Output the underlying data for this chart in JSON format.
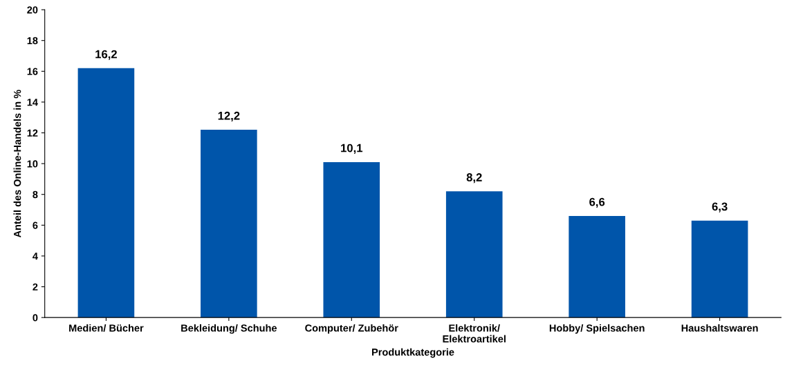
{
  "chart_data": {
    "type": "bar",
    "categories": [
      "Medien/ Bücher",
      "Bekleidung/ Schuhe",
      "Computer/ Zubehör",
      "Elektronik/\nElektroartikel",
      "Hobby/ Spielsachen",
      "Haushaltswaren"
    ],
    "values": [
      16.2,
      12.2,
      10.1,
      8.2,
      6.6,
      6.3
    ],
    "value_labels": [
      "16,2",
      "12,2",
      "10,1",
      "8,2",
      "6,6",
      "6,3"
    ],
    "color": "#0055aa",
    "xlabel": "Produktkategorie",
    "ylabel": "Anteil des Online-Handels in %",
    "ylim": [
      0,
      20
    ],
    "yticks": [
      0,
      2,
      4,
      6,
      8,
      10,
      12,
      14,
      16,
      18,
      20
    ],
    "grid": false,
    "legend": false
  }
}
